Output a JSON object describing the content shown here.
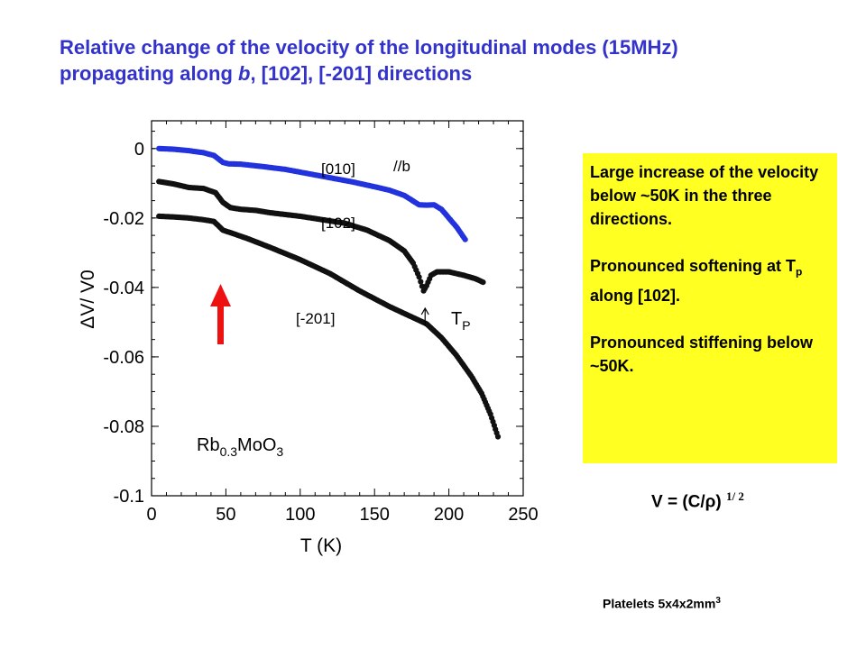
{
  "title": {
    "line1": "Relative change of the velocity of the longitudinal modes  (15MHz)",
    "line2_pre": "propagating along ",
    "line2_b": "b",
    "line2_post": ", [102], [-201] directions"
  },
  "chart_data": {
    "type": "scatter",
    "xlabel": "T  (K)",
    "ylabel": "ΔV/ V0",
    "xlim": [
      0,
      250
    ],
    "ylim": [
      -0.1,
      0.008
    ],
    "xticks": [
      "0",
      "50",
      "100",
      "150",
      "200",
      "250"
    ],
    "yticks": [
      "0",
      "-0.02",
      "-0.04",
      "-0.06",
      "-0.08",
      "-0.1"
    ],
    "x_tick_values": [
      0,
      50,
      100,
      150,
      200,
      250
    ],
    "y_tick_values": [
      0,
      -0.02,
      -0.04,
      -0.06,
      -0.08,
      -0.1
    ],
    "series": [
      {
        "name": "[010]",
        "color": "#2233dd",
        "points": [
          [
            5,
            0.0
          ],
          [
            15,
            -0.0002
          ],
          [
            25,
            -0.0006
          ],
          [
            35,
            -0.0012
          ],
          [
            42,
            -0.002
          ],
          [
            48,
            -0.004
          ],
          [
            52,
            -0.0044
          ],
          [
            60,
            -0.0045
          ],
          [
            75,
            -0.0052
          ],
          [
            90,
            -0.006
          ],
          [
            100,
            -0.0068
          ],
          [
            120,
            -0.0084
          ],
          [
            135,
            -0.0096
          ],
          [
            150,
            -0.011
          ],
          [
            160,
            -0.012
          ],
          [
            170,
            -0.0135
          ],
          [
            180,
            -0.0162
          ],
          [
            185,
            -0.0163
          ],
          [
            190,
            -0.0162
          ],
          [
            195,
            -0.0175
          ],
          [
            200,
            -0.02
          ],
          [
            205,
            -0.0225
          ],
          [
            211,
            -0.0262
          ]
        ]
      },
      {
        "name": "[102]",
        "color": "#111111",
        "points": [
          [
            5,
            -0.0095
          ],
          [
            15,
            -0.0102
          ],
          [
            25,
            -0.0112
          ],
          [
            35,
            -0.0115
          ],
          [
            43,
            -0.0127
          ],
          [
            48,
            -0.0155
          ],
          [
            53,
            -0.017
          ],
          [
            60,
            -0.0175
          ],
          [
            70,
            -0.0178
          ],
          [
            80,
            -0.0185
          ],
          [
            90,
            -0.019
          ],
          [
            100,
            -0.0195
          ],
          [
            115,
            -0.0205
          ],
          [
            130,
            -0.0215
          ],
          [
            145,
            -0.0235
          ],
          [
            160,
            -0.0265
          ],
          [
            170,
            -0.0295
          ],
          [
            176,
            -0.033
          ],
          [
            180,
            -0.037
          ],
          [
            183,
            -0.041
          ],
          [
            185,
            -0.0395
          ],
          [
            188,
            -0.0365
          ],
          [
            192,
            -0.0355
          ],
          [
            200,
            -0.0355
          ],
          [
            210,
            -0.0365
          ],
          [
            218,
            -0.0375
          ],
          [
            223,
            -0.0385
          ]
        ]
      },
      {
        "name": "[-201]",
        "color": "#111111",
        "points": [
          [
            5,
            -0.0195
          ],
          [
            15,
            -0.0197
          ],
          [
            25,
            -0.02
          ],
          [
            35,
            -0.0205
          ],
          [
            42,
            -0.021
          ],
          [
            48,
            -0.0235
          ],
          [
            55,
            -0.0245
          ],
          [
            65,
            -0.026
          ],
          [
            80,
            -0.0285
          ],
          [
            100,
            -0.032
          ],
          [
            120,
            -0.036
          ],
          [
            140,
            -0.041
          ],
          [
            160,
            -0.0455
          ],
          [
            175,
            -0.0485
          ],
          [
            185,
            -0.0505
          ],
          [
            195,
            -0.0545
          ],
          [
            205,
            -0.0595
          ],
          [
            215,
            -0.0655
          ],
          [
            222,
            -0.0705
          ],
          [
            228,
            -0.0765
          ],
          [
            233,
            -0.083
          ]
        ]
      }
    ],
    "annotations": {
      "label_010": "[010]",
      "label_b": "//b",
      "label_102": "[102]",
      "label_201": "[-201]",
      "tp": "T",
      "tp_sub": "P",
      "tp_arrow_at": 184,
      "material": "Rb",
      "material_sub1": "0.3",
      "material_mid": "MoO",
      "material_sub2": "3",
      "red_arrow_color": "#ee1111"
    }
  },
  "note": {
    "p1": "Large increase of the velocity below ~50K in the three directions.",
    "p2_pre": "Pronounced softening at T",
    "p2_sub": "p",
    "p2_post": " along [102].",
    "p3": "Pronounced stiffening below ~50K."
  },
  "formula": {
    "main": "V = (C/ρ) ",
    "exp": "1/ 2"
  },
  "platelets": {
    "text": "Platelets  5x4x2mm",
    "exp": "3"
  }
}
